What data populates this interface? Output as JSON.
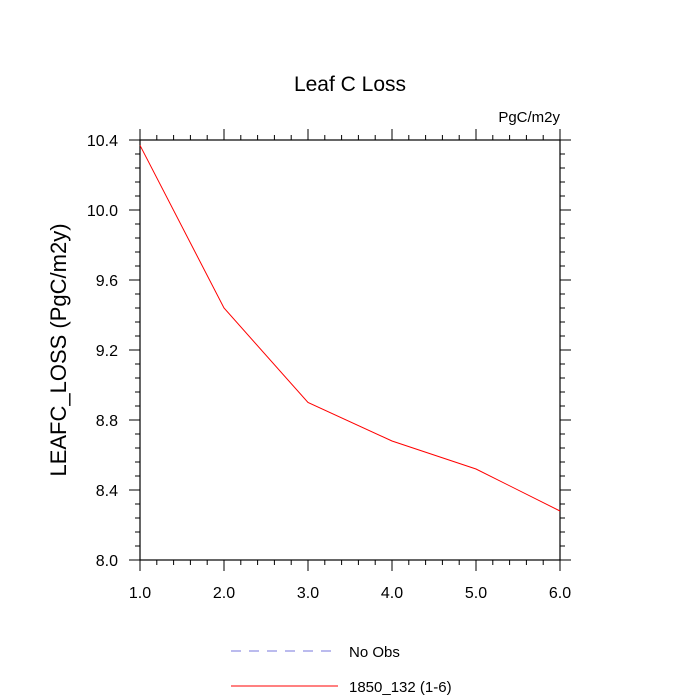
{
  "chart_data": {
    "type": "line",
    "title": "Leaf C Loss",
    "units_label": "PgC/m2y",
    "xlabel": "",
    "ylabel": "LEAFC_LOSS  (PgC/m2y)",
    "xlim": [
      1.0,
      6.0
    ],
    "ylim": [
      8.0,
      10.4
    ],
    "x_ticks": [
      "1.0",
      "2.0",
      "3.0",
      "4.0",
      "5.0",
      "6.0"
    ],
    "y_ticks": [
      "8.0",
      "8.4",
      "8.8",
      "9.2",
      "9.6",
      "10.0",
      "10.4"
    ],
    "grid": false,
    "legend_position": "bottom",
    "series": [
      {
        "name": "1850_132 (1-6)",
        "color": "#ff0000",
        "dash": "solid",
        "x": [
          1.0,
          2.0,
          3.0,
          4.0,
          5.0,
          6.0
        ],
        "y": [
          10.37,
          9.44,
          8.9,
          8.68,
          8.52,
          8.28
        ]
      }
    ],
    "legend": [
      {
        "label": "No Obs",
        "color": "#7777dd",
        "dash": "dashed"
      },
      {
        "label": "1850_132 (1-6)",
        "color": "#ff0000",
        "dash": "solid"
      }
    ]
  }
}
